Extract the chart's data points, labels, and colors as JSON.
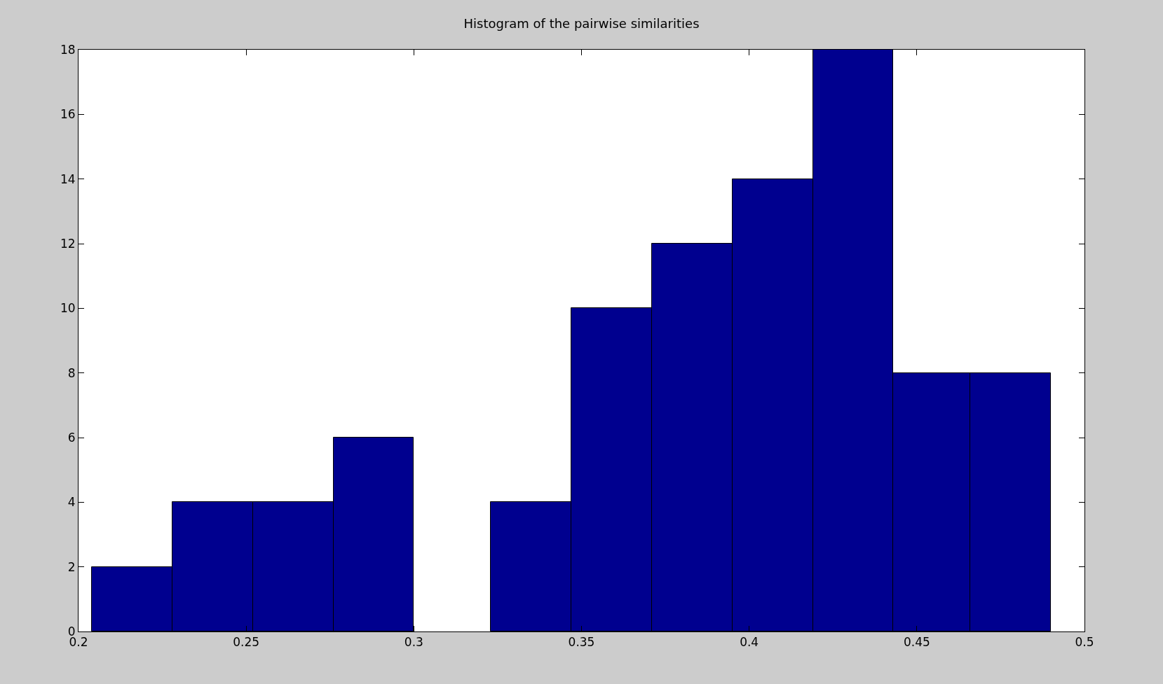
{
  "chart_data": {
    "type": "histogram",
    "title": "Histogram of the pairwise similarities",
    "bins": [
      0.204,
      0.228,
      0.252,
      0.276,
      0.3,
      0.323,
      0.347,
      0.371,
      0.395,
      0.419,
      0.443,
      0.466,
      0.49
    ],
    "values": [
      2,
      4,
      4,
      6,
      0,
      4,
      10,
      12,
      14,
      18,
      8,
      8
    ],
    "color": "#00008f",
    "xlim": [
      0.2,
      0.5
    ],
    "xticks": [
      0.2,
      0.25,
      0.3,
      0.35,
      0.4,
      0.45,
      0.5
    ],
    "ylim": [
      0,
      18
    ],
    "yticks": [
      0,
      2,
      4,
      6,
      8,
      10,
      12,
      14,
      16,
      18
    ]
  }
}
